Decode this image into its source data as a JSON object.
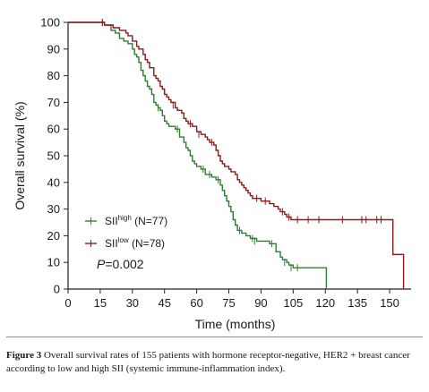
{
  "chart_data": {
    "type": "line",
    "title": "",
    "xlabel": "Time (months)",
    "ylabel": "Overall survival (%)",
    "xlim": [
      0,
      160
    ],
    "ylim": [
      0,
      100
    ],
    "x_ticks": [
      0,
      15,
      30,
      45,
      60,
      75,
      90,
      105,
      120,
      135,
      150
    ],
    "y_ticks": [
      0,
      10,
      20,
      30,
      40,
      50,
      60,
      70,
      80,
      90,
      100
    ],
    "step": true,
    "series": [
      {
        "name_main": "SII",
        "name_sup": "high",
        "name_suffix": " (N=77)",
        "color": "#2e7d32",
        "points": [
          [
            0,
            100
          ],
          [
            15,
            100
          ],
          [
            17,
            99
          ],
          [
            20,
            97
          ],
          [
            22,
            96
          ],
          [
            24,
            94
          ],
          [
            26,
            93
          ],
          [
            28,
            92
          ],
          [
            30,
            90
          ],
          [
            31,
            88
          ],
          [
            32,
            87
          ],
          [
            33,
            85
          ],
          [
            34,
            82
          ],
          [
            35,
            80
          ],
          [
            36,
            78
          ],
          [
            37,
            76
          ],
          [
            38,
            75
          ],
          [
            39,
            73
          ],
          [
            40,
            70
          ],
          [
            41,
            69
          ],
          [
            42,
            68
          ],
          [
            43,
            67
          ],
          [
            44,
            65
          ],
          [
            45,
            63
          ],
          [
            46,
            62
          ],
          [
            47,
            61
          ],
          [
            50,
            60
          ],
          [
            52,
            57
          ],
          [
            54,
            55
          ],
          [
            55,
            53
          ],
          [
            56,
            52
          ],
          [
            57,
            50
          ],
          [
            58,
            48
          ],
          [
            59,
            47
          ],
          [
            60,
            46
          ],
          [
            62,
            45
          ],
          [
            64,
            43
          ],
          [
            67,
            42
          ],
          [
            69,
            41
          ],
          [
            71,
            39
          ],
          [
            72,
            37
          ],
          [
            73,
            35
          ],
          [
            74,
            33
          ],
          [
            75,
            31
          ],
          [
            76,
            29
          ],
          [
            77,
            26
          ],
          [
            78,
            24
          ],
          [
            79,
            22
          ],
          [
            81,
            21
          ],
          [
            83,
            20
          ],
          [
            85,
            19
          ],
          [
            88,
            18
          ],
          [
            92,
            18
          ],
          [
            94,
            17
          ],
          [
            97,
            14
          ],
          [
            99,
            12
          ],
          [
            100,
            11
          ],
          [
            102,
            10
          ],
          [
            103,
            9
          ],
          [
            105,
            8
          ],
          [
            108,
            8
          ],
          [
            120,
            8
          ],
          [
            120.5,
            0
          ]
        ],
        "censored": [
          [
            16,
            100
          ],
          [
            42,
            68
          ],
          [
            51,
            60
          ],
          [
            63,
            45
          ],
          [
            66,
            43
          ],
          [
            70,
            41
          ],
          [
            80,
            22
          ],
          [
            86,
            19
          ],
          [
            87,
            18
          ],
          [
            95,
            17
          ],
          [
            101,
            10
          ],
          [
            104,
            8
          ],
          [
            107,
            8
          ]
        ]
      },
      {
        "name_main": "SII",
        "name_sup": "low",
        "name_suffix": " (N=78)",
        "color": "#8b1a1a",
        "points": [
          [
            0,
            100
          ],
          [
            15,
            100
          ],
          [
            17,
            99
          ],
          [
            21,
            98
          ],
          [
            24,
            97
          ],
          [
            27,
            96
          ],
          [
            28,
            95
          ],
          [
            30,
            93
          ],
          [
            32,
            91
          ],
          [
            33,
            90
          ],
          [
            35,
            88
          ],
          [
            36,
            86
          ],
          [
            37,
            85
          ],
          [
            38,
            83
          ],
          [
            40,
            80
          ],
          [
            41,
            79
          ],
          [
            42,
            78
          ],
          [
            43,
            76
          ],
          [
            44,
            75
          ],
          [
            45,
            73
          ],
          [
            46,
            72
          ],
          [
            47,
            71
          ],
          [
            48,
            70
          ],
          [
            50,
            68
          ],
          [
            51,
            67
          ],
          [
            53,
            66
          ],
          [
            54,
            64
          ],
          [
            55,
            63
          ],
          [
            56,
            62
          ],
          [
            58,
            61
          ],
          [
            60,
            59
          ],
          [
            62,
            58
          ],
          [
            64,
            57
          ],
          [
            65,
            56
          ],
          [
            66,
            55
          ],
          [
            68,
            54
          ],
          [
            69,
            52
          ],
          [
            70,
            50
          ],
          [
            71,
            48
          ],
          [
            72,
            47
          ],
          [
            73,
            46
          ],
          [
            75,
            45
          ],
          [
            76,
            44
          ],
          [
            78,
            43
          ],
          [
            79,
            41
          ],
          [
            80,
            40
          ],
          [
            81,
            39
          ],
          [
            82,
            38
          ],
          [
            83,
            37
          ],
          [
            84,
            36
          ],
          [
            85,
            35
          ],
          [
            86,
            34
          ],
          [
            90,
            33
          ],
          [
            94,
            32
          ],
          [
            96,
            31
          ],
          [
            98,
            30
          ],
          [
            99,
            29
          ],
          [
            101,
            28
          ],
          [
            102,
            27
          ],
          [
            104,
            26
          ],
          [
            110,
            26
          ],
          [
            151,
            26
          ],
          [
            151.5,
            13
          ],
          [
            156,
            13
          ],
          [
            156.5,
            0
          ]
        ],
        "censored": [
          [
            16,
            100
          ],
          [
            49,
            69
          ],
          [
            57,
            62
          ],
          [
            61,
            58
          ],
          [
            67,
            55
          ],
          [
            88,
            34
          ],
          [
            92,
            33
          ],
          [
            100,
            29
          ],
          [
            103,
            27
          ],
          [
            107,
            26
          ],
          [
            112,
            26
          ],
          [
            117,
            26
          ],
          [
            128,
            26
          ],
          [
            137,
            26
          ],
          [
            139,
            26
          ],
          [
            144,
            26
          ],
          [
            146,
            26
          ]
        ]
      }
    ],
    "annotation": {
      "label_italic": "P",
      "label_rest": "=0.002"
    }
  },
  "caption": {
    "label": "Figure 3",
    "text": " Overall survival rates of 155 patients with hormone receptor-negative, HER2 + breast cancer according to low and high SII (systemic immune-inflammation index)."
  }
}
